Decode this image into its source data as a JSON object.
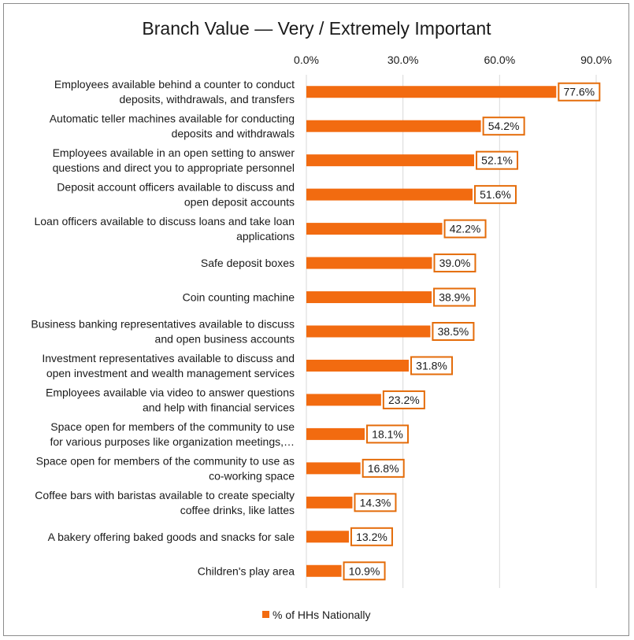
{
  "colors": {
    "bar": "#f26b10",
    "label_border": "#e46c0a",
    "grid": "#d9d9d9",
    "frame": "#8c8c8c"
  },
  "chart_data": {
    "type": "bar",
    "orientation": "horizontal",
    "title": "Branch Value — Very / Extremely Important",
    "xlim": [
      0,
      90
    ],
    "x_ticks": [
      "0.0%",
      "30.0%",
      "60.0%",
      "90.0%"
    ],
    "x_tick_values": [
      0,
      30,
      60,
      90
    ],
    "x_axis_position": "top",
    "grid": true,
    "legend_position": "bottom",
    "categories": [
      [
        "Employees available behind a counter to conduct",
        "deposits, withdrawals, and transfers"
      ],
      [
        "Automatic teller machines available for conducting",
        "deposits and withdrawals"
      ],
      [
        "Employees available in an open setting to answer",
        "questions and direct you to appropriate personnel"
      ],
      [
        "Deposit account officers available to discuss and",
        "open deposit accounts"
      ],
      [
        "Loan officers available to discuss loans and take loan",
        "applications"
      ],
      [
        "Safe deposit boxes"
      ],
      [
        "Coin counting machine"
      ],
      [
        "Business banking representatives available to discuss",
        "and open business accounts"
      ],
      [
        "Investment representatives available to discuss and",
        "open investment and wealth management services"
      ],
      [
        "Employees available via video to answer questions",
        "and help with financial services"
      ],
      [
        "Space open for members of the community to use",
        "for various purposes like organization meetings,…"
      ],
      [
        "Space open for members of the community to use as",
        "co-working space"
      ],
      [
        "Coffee bars with baristas available to create specialty",
        "coffee drinks, like lattes"
      ],
      [
        "A bakery offering baked goods and snacks for sale"
      ],
      [
        "Children's play area"
      ]
    ],
    "series": [
      {
        "name": "% of HHs Nationally",
        "values": [
          77.6,
          54.2,
          52.1,
          51.6,
          42.2,
          39.0,
          38.9,
          38.5,
          31.8,
          23.2,
          18.1,
          16.8,
          14.3,
          13.2,
          10.9
        ],
        "labels": [
          "77.6%",
          "54.2%",
          "52.1%",
          "51.6%",
          "42.2%",
          "39.0%",
          "38.9%",
          "38.5%",
          "31.8%",
          "23.2%",
          "18.1%",
          "16.8%",
          "14.3%",
          "13.2%",
          "10.9%"
        ]
      }
    ]
  }
}
